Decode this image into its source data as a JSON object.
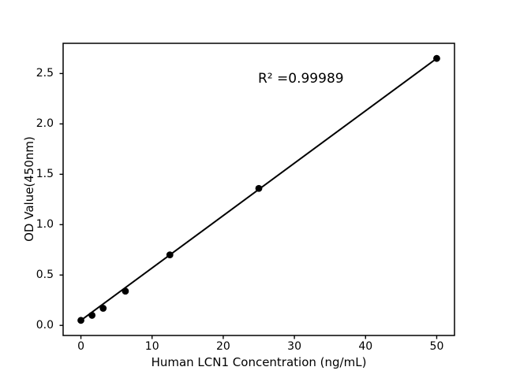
{
  "chart_data": {
    "type": "scatter",
    "title": "",
    "xlabel": "Human LCN1 Concentration (ng/mL)",
    "ylabel": "OD Value(450nm)",
    "annotation": "R² =0.99989",
    "x": [
      0,
      1.5625,
      3.125,
      6.25,
      12.5,
      25,
      50
    ],
    "y": [
      0.05,
      0.1,
      0.17,
      0.34,
      0.7,
      1.36,
      2.65
    ],
    "fit_line": {
      "x": [
        0,
        50
      ],
      "y": [
        0.05,
        2.65
      ]
    },
    "xlim": [
      -2.5,
      52.5
    ],
    "ylim": [
      -0.1,
      2.8
    ],
    "xticks": [
      0,
      10,
      20,
      30,
      40,
      50
    ],
    "xtick_labels": [
      "0",
      "10",
      "20",
      "30",
      "40",
      "50"
    ],
    "yticks": [
      0.0,
      0.5,
      1.0,
      1.5,
      2.0,
      2.5
    ],
    "ytick_labels": [
      "0.0",
      "0.5",
      "1.0",
      "1.5",
      "2.0",
      "2.5"
    ],
    "grid": false,
    "legend": null,
    "background_color": "#ffffff",
    "axis_color": "#000000",
    "line_color": "#000000",
    "marker_color": "#000000"
  }
}
